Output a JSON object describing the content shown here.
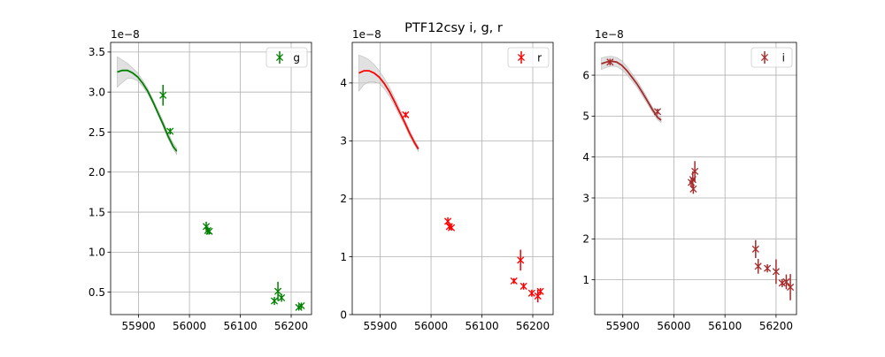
{
  "title": "PTF12csy  i, g, r",
  "chart_data": [
    {
      "type": "scatter",
      "band": "g",
      "color": "#008000",
      "offset_text": "1e−8",
      "legend": {
        "label": "g",
        "position": "top-right"
      },
      "grid": true,
      "xlim": [
        55845,
        56240
      ],
      "ylim": [
        0.22,
        3.62
      ],
      "xticks": [
        55900,
        56000,
        56100,
        56200
      ],
      "yticks": [
        0.5,
        1.0,
        1.5,
        2.0,
        2.5,
        3.0,
        3.5
      ],
      "ytick_labels": [
        "0.5",
        "1.0",
        "1.5",
        "2.0",
        "2.5",
        "3.0",
        "3.5"
      ],
      "points": [
        {
          "x": 55948,
          "y": 2.96,
          "err": 0.13
        },
        {
          "x": 55962,
          "y": 2.51,
          "err": 0.04
        },
        {
          "x": 56033,
          "y": 1.32,
          "err": 0.06
        },
        {
          "x": 56036,
          "y": 1.27,
          "err": 0.05
        },
        {
          "x": 56039,
          "y": 1.26,
          "err": 0.04
        },
        {
          "x": 56167,
          "y": 0.39,
          "err": 0.05
        },
        {
          "x": 56174,
          "y": 0.51,
          "err": 0.12
        },
        {
          "x": 56181,
          "y": 0.43,
          "err": 0.05
        },
        {
          "x": 56215,
          "y": 0.31,
          "err": 0.04
        },
        {
          "x": 56220,
          "y": 0.33,
          "err": 0.04
        }
      ],
      "fit": {
        "x": [
          55858,
          55868,
          55878,
          55888,
          55898,
          55908,
          55918,
          55928,
          55938,
          55948,
          55958,
          55968,
          55975
        ],
        "y": [
          3.25,
          3.27,
          3.27,
          3.24,
          3.19,
          3.11,
          3.01,
          2.88,
          2.74,
          2.6,
          2.45,
          2.32,
          2.26
        ]
      },
      "band_envelope": {
        "upper": [
          3.44,
          3.4,
          3.36,
          3.3,
          3.24,
          3.15,
          3.04,
          2.91,
          2.78,
          2.64,
          2.49,
          2.36,
          2.3
        ],
        "lower": [
          3.06,
          3.12,
          3.17,
          3.17,
          3.14,
          3.07,
          2.98,
          2.86,
          2.72,
          2.57,
          2.42,
          2.29,
          2.22
        ]
      }
    },
    {
      "type": "scatter",
      "band": "r",
      "color": "#ff0000",
      "offset_text": "1e−8",
      "legend": {
        "label": "r",
        "position": "top-right"
      },
      "grid": true,
      "xlim": [
        55845,
        56240
      ],
      "ylim": [
        0,
        4.7
      ],
      "xticks": [
        55900,
        56000,
        56100,
        56200
      ],
      "yticks": [
        0,
        1,
        2,
        3,
        4
      ],
      "ytick_labels": [
        "0",
        "1",
        "2",
        "3",
        "4"
      ],
      "points": [
        {
          "x": 55950,
          "y": 3.45,
          "err": 0.05
        },
        {
          "x": 56033,
          "y": 1.61,
          "err": 0.07
        },
        {
          "x": 56036,
          "y": 1.52,
          "err": 0.05
        },
        {
          "x": 56040,
          "y": 1.5,
          "err": 0.05
        },
        {
          "x": 56163,
          "y": 0.58,
          "err": 0.05
        },
        {
          "x": 56176,
          "y": 0.94,
          "err": 0.18
        },
        {
          "x": 56182,
          "y": 0.49,
          "err": 0.06
        },
        {
          "x": 56198,
          "y": 0.37,
          "err": 0.06
        },
        {
          "x": 56210,
          "y": 0.32,
          "err": 0.11
        },
        {
          "x": 56215,
          "y": 0.4,
          "err": 0.06
        }
      ],
      "fit": {
        "x": [
          55858,
          55868,
          55878,
          55888,
          55898,
          55908,
          55918,
          55928,
          55938,
          55948,
          55958,
          55968,
          55975
        ],
        "y": [
          4.17,
          4.21,
          4.21,
          4.17,
          4.1,
          3.99,
          3.85,
          3.68,
          3.5,
          3.32,
          3.13,
          2.96,
          2.86
        ]
      },
      "band_envelope": {
        "upper": [
          4.48,
          4.45,
          4.4,
          4.32,
          4.21,
          4.08,
          3.93,
          3.75,
          3.56,
          3.37,
          3.18,
          3.0,
          2.9
        ],
        "lower": [
          3.86,
          3.97,
          4.02,
          4.02,
          3.99,
          3.9,
          3.77,
          3.61,
          3.44,
          3.27,
          3.08,
          2.92,
          2.82
        ]
      }
    },
    {
      "type": "scatter",
      "band": "i",
      "color": "#a52a2a",
      "offset_text": "1e−8",
      "legend": {
        "label": "i",
        "position": "top-right"
      },
      "grid": true,
      "xlim": [
        55845,
        56240
      ],
      "ylim": [
        0.15,
        6.8
      ],
      "xticks": [
        55900,
        56000,
        56100,
        56200
      ],
      "yticks": [
        1,
        2,
        3,
        4,
        5,
        6
      ],
      "ytick_labels": [
        "1",
        "2",
        "3",
        "4",
        "5",
        "6"
      ],
      "points": [
        {
          "x": 55875,
          "y": 6.32,
          "err": 0.08
        },
        {
          "x": 55968,
          "y": 5.11,
          "err": 0.07
        },
        {
          "x": 56034,
          "y": 3.38,
          "err": 0.12
        },
        {
          "x": 56037,
          "y": 3.45,
          "err": 0.2
        },
        {
          "x": 56038,
          "y": 3.22,
          "err": 0.12
        },
        {
          "x": 56041,
          "y": 3.65,
          "err": 0.25
        },
        {
          "x": 56160,
          "y": 1.75,
          "err": 0.22
        },
        {
          "x": 56165,
          "y": 1.33,
          "err": 0.18
        },
        {
          "x": 56183,
          "y": 1.28,
          "err": 0.1
        },
        {
          "x": 56200,
          "y": 1.2,
          "err": 0.3
        },
        {
          "x": 56212,
          "y": 0.92,
          "err": 0.1
        },
        {
          "x": 56220,
          "y": 0.95,
          "err": 0.18
        },
        {
          "x": 56228,
          "y": 0.82,
          "err": 0.32
        }
      ],
      "fit": {
        "x": [
          55858,
          55868,
          55878,
          55888,
          55898,
          55908,
          55918,
          55928,
          55938,
          55948,
          55958,
          55968,
          55975
        ],
        "y": [
          6.28,
          6.32,
          6.34,
          6.32,
          6.24,
          6.11,
          5.95,
          5.78,
          5.58,
          5.37,
          5.16,
          4.97,
          4.9
        ]
      },
      "band_envelope": {
        "upper": [
          6.42,
          6.45,
          6.46,
          6.43,
          6.35,
          6.21,
          6.04,
          5.86,
          5.66,
          5.44,
          5.22,
          5.03,
          4.96
        ],
        "lower": [
          6.14,
          6.19,
          6.22,
          6.21,
          6.13,
          6.01,
          5.86,
          5.7,
          5.5,
          5.3,
          5.1,
          4.91,
          4.84
        ]
      }
    }
  ]
}
